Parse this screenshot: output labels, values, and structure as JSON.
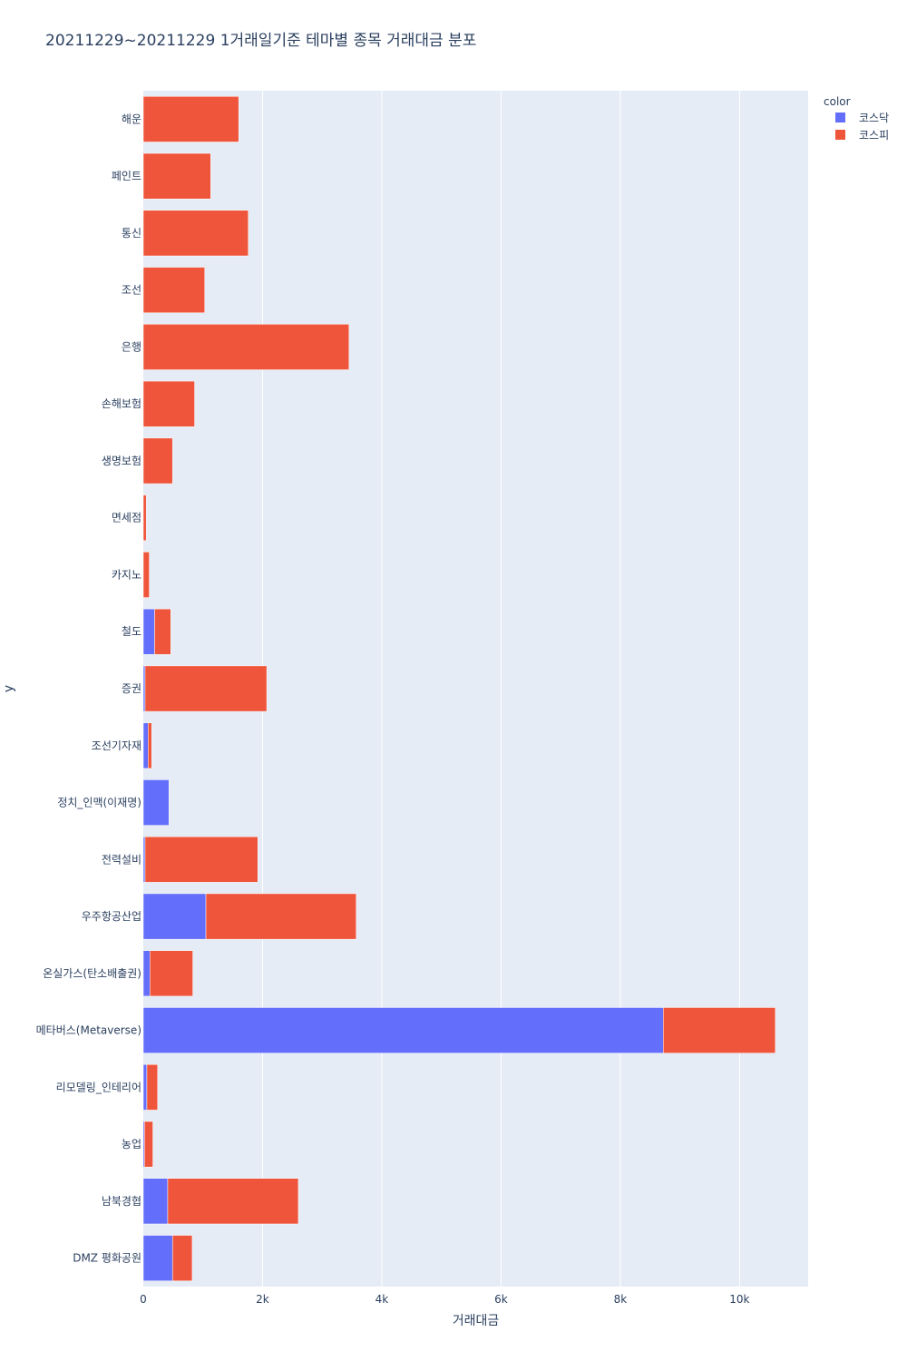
{
  "chart_data": {
    "type": "bar",
    "orientation": "horizontal",
    "barmode": "stack",
    "title": "20211229~20211229 1거래일기준 테마별 종목 거래대금 분포",
    "xlabel": "거래대금",
    "ylabel": "y",
    "xlim": [
      0,
      11150
    ],
    "xticks": [
      0,
      2000,
      4000,
      6000,
      8000,
      10000
    ],
    "xtick_labels": [
      "0",
      "2k",
      "4k",
      "6k",
      "8k",
      "10k"
    ],
    "grid": true,
    "legend": {
      "title": "color",
      "position": "top-right"
    },
    "categories": [
      "해운",
      "페인트",
      "통신",
      "조선",
      "은행",
      "손해보험",
      "생명보험",
      "면세점",
      "카지노",
      "철도",
      "증권",
      "조선기자재",
      "정치_인맥(이재명)",
      "전력설비",
      "우주항공산업",
      "온실가스(탄소배출권)",
      "메타버스(Metaverse)",
      "리모델링_인테리어",
      "농업",
      "남북경협",
      "DMZ 평화공원"
    ],
    "series": [
      {
        "name": "코스닥",
        "color": "#636efa",
        "values": [
          0,
          0,
          0,
          0,
          0,
          0,
          0,
          0,
          0,
          190,
          30,
          80,
          430,
          30,
          1050,
          110,
          8720,
          60,
          20,
          410,
          490
        ]
      },
      {
        "name": "코스피",
        "color": "#ef553b",
        "values": [
          1600,
          1130,
          1760,
          1030,
          3450,
          860,
          490,
          50,
          100,
          270,
          2040,
          60,
          0,
          1890,
          2520,
          720,
          1880,
          180,
          140,
          2190,
          330
        ]
      }
    ]
  }
}
